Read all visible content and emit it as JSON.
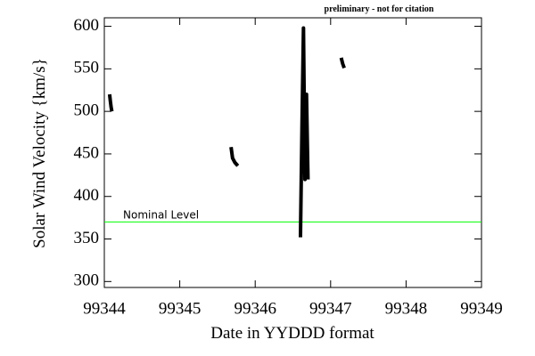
{
  "chart_data": {
    "type": "line",
    "annotation": "preliminary - not for citation",
    "x_label": "Date in YYDDD format",
    "y_label": "Solar Wind Velocity {km/s}",
    "x": [
      99344.07,
      99344.08,
      99344.09,
      99344.1,
      99344.5,
      99345.68,
      99345.7,
      99345.73,
      99345.77,
      99346.2,
      99346.6,
      99346.62,
      99346.64,
      99346.66,
      99346.68,
      99346.7,
      99346.9,
      99347.14,
      99347.16,
      99347.18
    ],
    "series": [
      {
        "color": "#000000",
        "values": [
          520,
          512,
          505,
          500,
          null,
          458,
          445,
          440,
          436,
          null,
          352,
          480,
          598,
          420,
          520,
          420,
          null,
          563,
          556,
          551
        ]
      }
    ],
    "reference_line": {
      "value": 370,
      "label": "Nominal Level",
      "color": "#00ff00"
    },
    "xlim": [
      99344,
      99349
    ],
    "xticks": [
      99344,
      99345,
      99346,
      99347,
      99348,
      99349
    ],
    "ylim": [
      293,
      610
    ],
    "yticks": [
      300,
      350,
      400,
      450,
      500,
      550,
      600
    ]
  }
}
